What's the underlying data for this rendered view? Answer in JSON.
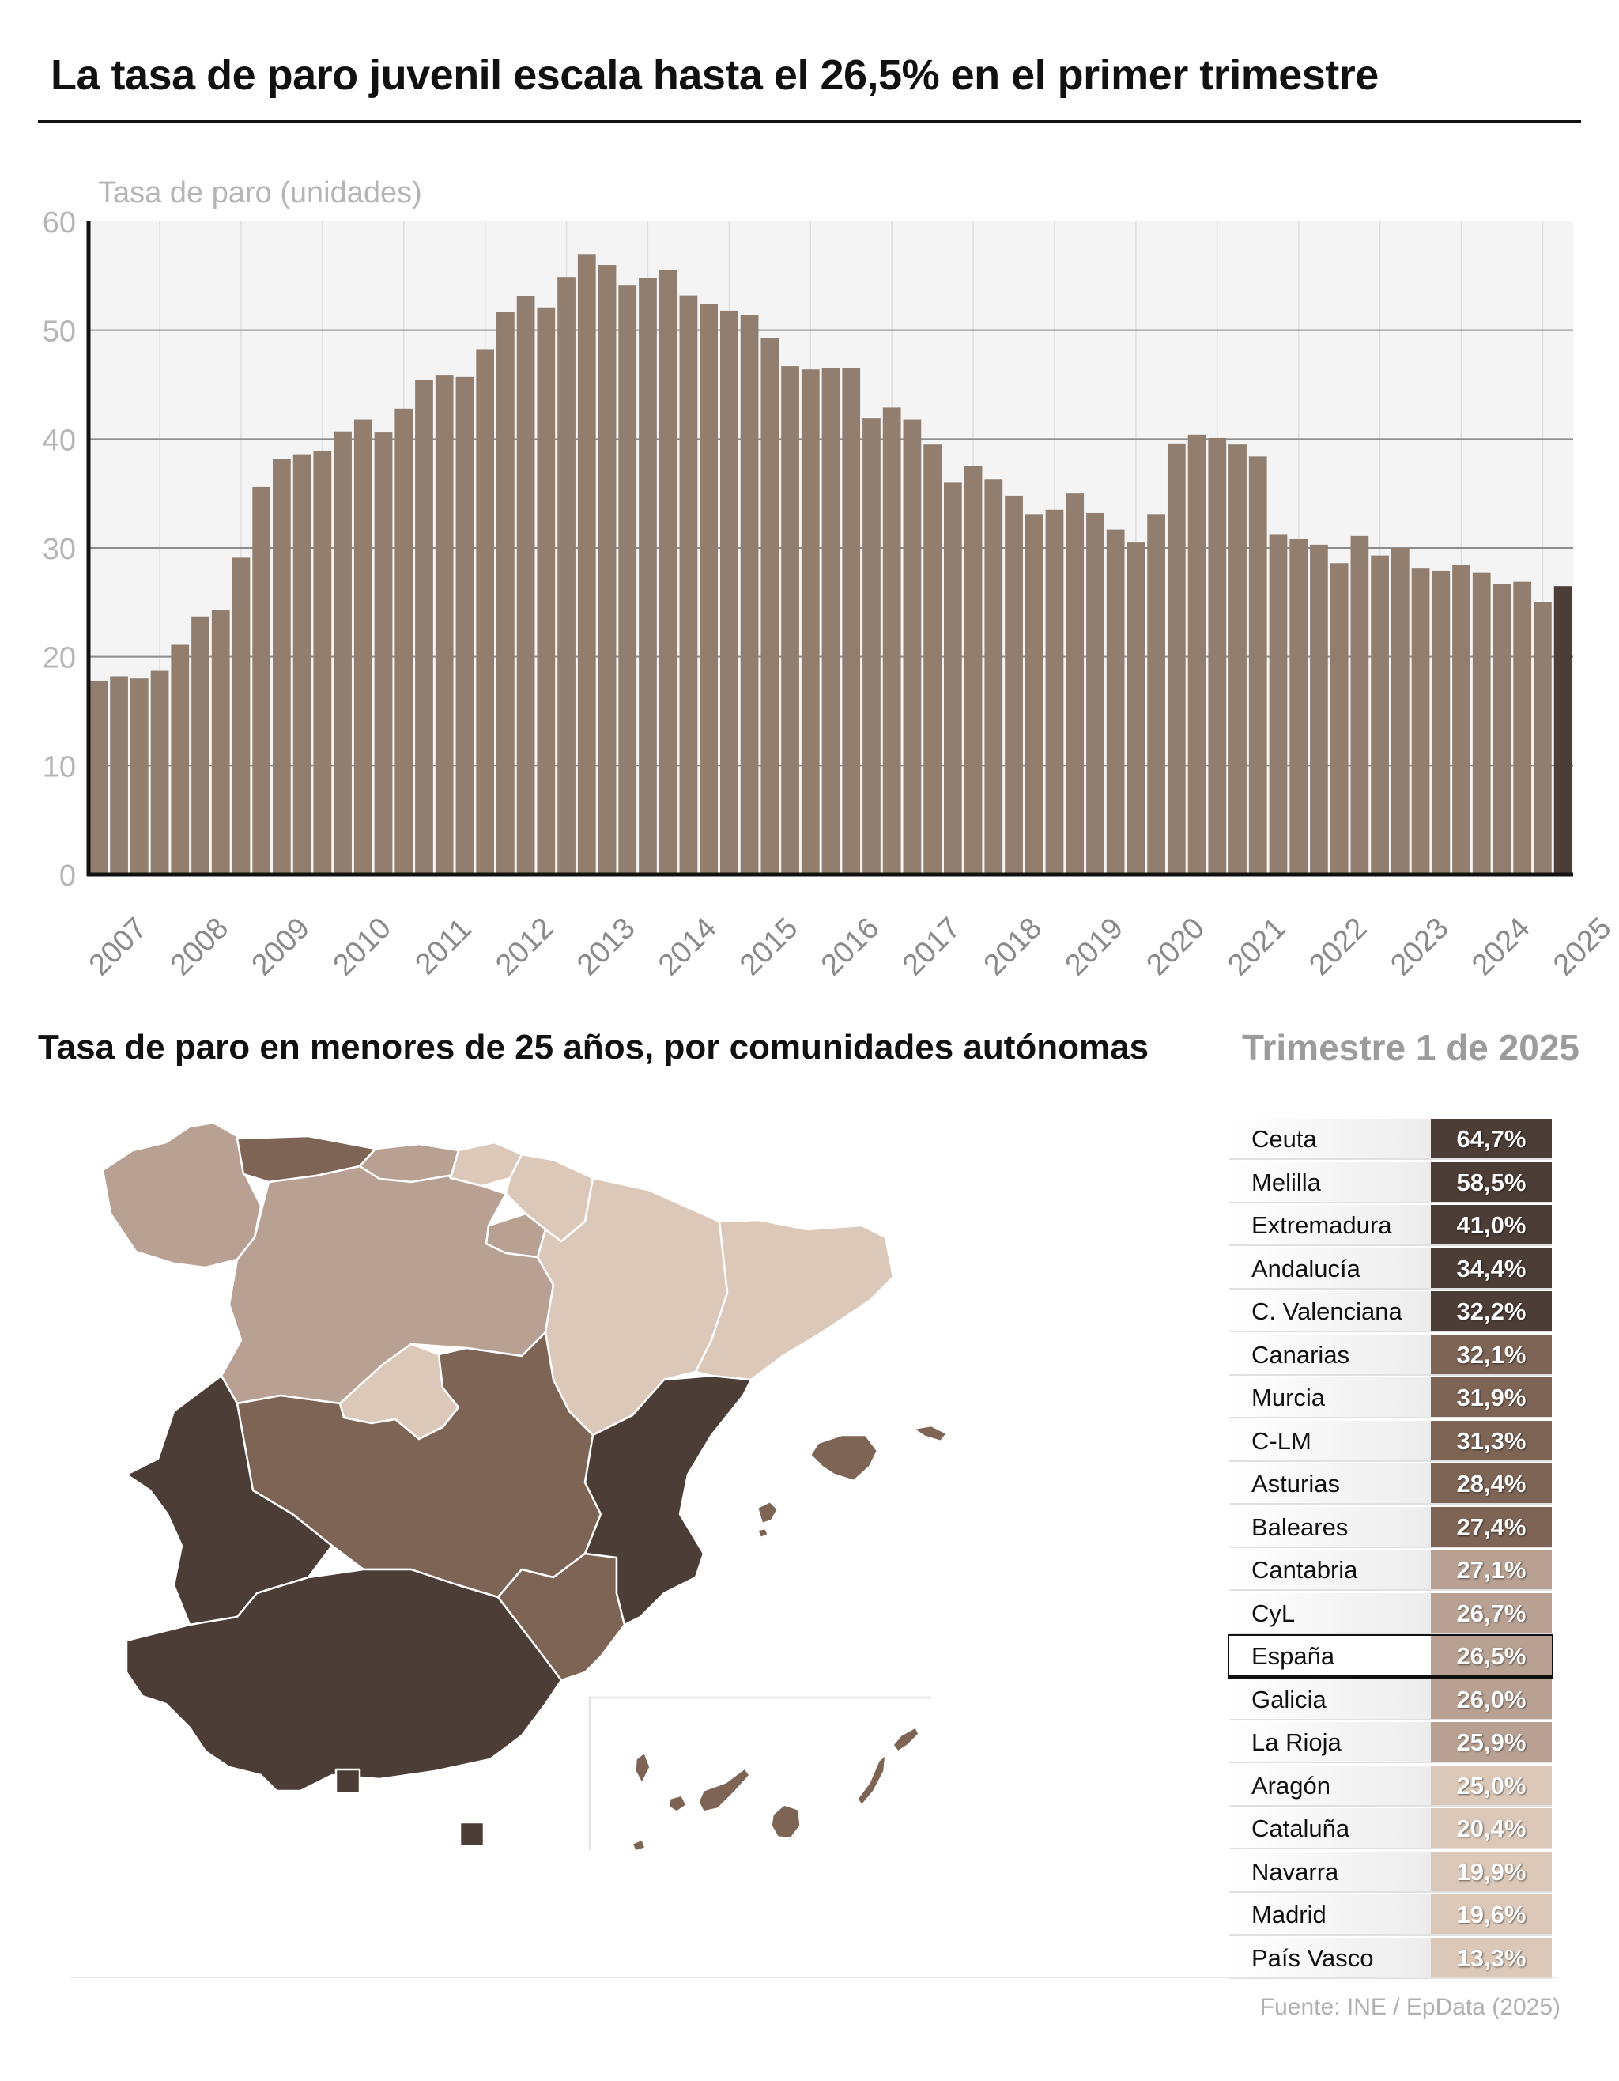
{
  "title": "La tasa de paro juvenil escala hasta el 26,5% en el primer trimestre",
  "chart_data": {
    "type": "bar",
    "ylabel": "Tasa de paro (unidades)",
    "ylim": [
      0,
      60
    ],
    "yticks": [
      0,
      10,
      20,
      30,
      40,
      50,
      60
    ],
    "year_ticks": [
      "2007",
      "2008",
      "2009",
      "2010",
      "2011",
      "2012",
      "2013",
      "2014",
      "2015",
      "2016",
      "2017",
      "2018",
      "2019",
      "2020",
      "2021",
      "2022",
      "2023",
      "2024",
      "2025"
    ],
    "values": [
      17.8,
      18.2,
      18.0,
      18.7,
      21.1,
      23.7,
      24.3,
      29.1,
      35.6,
      38.2,
      38.6,
      38.9,
      40.7,
      41.8,
      40.6,
      42.8,
      45.4,
      45.9,
      45.7,
      48.2,
      51.7,
      53.1,
      52.1,
      54.9,
      57.0,
      56.0,
      54.1,
      54.8,
      55.5,
      53.2,
      52.4,
      51.8,
      51.4,
      49.3,
      46.7,
      46.4,
      46.5,
      46.5,
      41.9,
      42.9,
      41.8,
      39.5,
      36.0,
      37.5,
      36.3,
      34.8,
      33.1,
      33.5,
      35.0,
      33.2,
      31.7,
      30.5,
      33.1,
      39.6,
      40.4,
      40.1,
      39.5,
      38.4,
      31.2,
      30.8,
      30.3,
      28.6,
      31.1,
      29.3,
      30.0,
      28.1,
      27.9,
      28.4,
      27.7,
      26.7,
      26.9,
      25.0,
      26.5
    ],
    "colors": {
      "bar": "#917e6f",
      "highlight": "#4c3d36",
      "grid": "#8c8c8c",
      "gridlight": "#dedede",
      "plotbg": "#f4f4f4",
      "axis": "#111111",
      "tick": "#b5b5b5"
    }
  },
  "map": {
    "subtitle": "Tasa de paro en menores de 25 años, por comunidades autónomas",
    "period": "Trimestre 1 de 2025",
    "rows": [
      {
        "name": "Ceuta",
        "value": "64,7%",
        "color": "#4c3d36"
      },
      {
        "name": "Melilla",
        "value": "58,5%",
        "color": "#4c3d36"
      },
      {
        "name": "Extremadura",
        "value": "41,0%",
        "color": "#4c3d36"
      },
      {
        "name": "Andalucía",
        "value": "34,4%",
        "color": "#4c3d36"
      },
      {
        "name": "C. Valenciana",
        "value": "32,2%",
        "color": "#4c3d36"
      },
      {
        "name": "Canarias",
        "value": "32,1%",
        "color": "#7d6455"
      },
      {
        "name": "Murcia",
        "value": "31,9%",
        "color": "#7d6455"
      },
      {
        "name": "C-LM",
        "value": "31,3%",
        "color": "#7d6455"
      },
      {
        "name": "Asturias",
        "value": "28,4%",
        "color": "#7d6455"
      },
      {
        "name": "Baleares",
        "value": "27,4%",
        "color": "#7d6455"
      },
      {
        "name": "Cantabria",
        "value": "27,1%",
        "color": "#b8a193"
      },
      {
        "name": "CyL",
        "value": "26,7%",
        "color": "#b8a193"
      },
      {
        "name": "España",
        "value": "26,5%",
        "color": "#b8a193",
        "highlight": true
      },
      {
        "name": "Galicia",
        "value": "26,0%",
        "color": "#b8a193"
      },
      {
        "name": "La Rioja",
        "value": "25,9%",
        "color": "#b8a193"
      },
      {
        "name": "Aragón",
        "value": "25,0%",
        "color": "#dbc8b8"
      },
      {
        "name": "Cataluña",
        "value": "20,4%",
        "color": "#dbc8b8"
      },
      {
        "name": "Navarra",
        "value": "19,9%",
        "color": "#dbc8b8"
      },
      {
        "name": "Madrid",
        "value": "19,6%",
        "color": "#dbc8b8"
      },
      {
        "name": "País Vasco",
        "value": "13,3%",
        "color": "#dbc8b8"
      }
    ]
  },
  "source": "Fuente: INE / EpData (2025)"
}
